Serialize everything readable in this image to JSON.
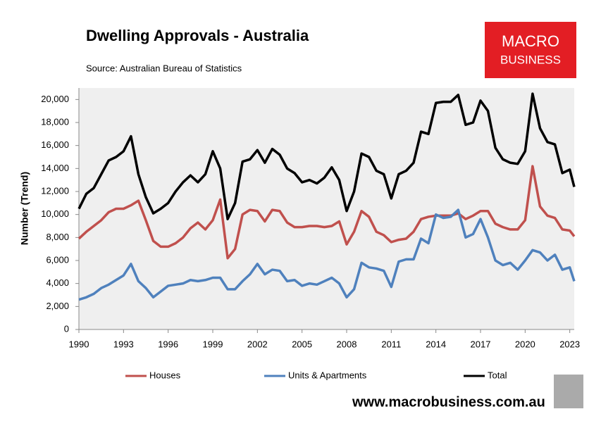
{
  "chart_data": {
    "type": "line",
    "title": "Dwelling Approvals - Australia",
    "subtitle": "Source: Australian Bureau of Statistics",
    "logo": [
      "MACRO",
      "BUSINESS"
    ],
    "footer": "www.macrobusiness.com.au",
    "y_label": "Number (Trend)",
    "x": [
      1990,
      1990.5,
      1991,
      1991.5,
      1992,
      1992.5,
      1993,
      1993.5,
      1994,
      1994.5,
      1995,
      1995.5,
      1996,
      1996.5,
      1997,
      1997.5,
      1998,
      1998.5,
      1999,
      1999.5,
      2000,
      2000.5,
      2001,
      2001.5,
      2002,
      2002.5,
      2003,
      2003.5,
      2004,
      2004.5,
      2005,
      2005.5,
      2006,
      2006.5,
      2007,
      2007.5,
      2008,
      2008.5,
      2009,
      2009.5,
      2010,
      2010.5,
      2011,
      2011.5,
      2012,
      2012.5,
      2013,
      2013.5,
      2014,
      2014.5,
      2015,
      2015.5,
      2016,
      2016.5,
      2017,
      2017.5,
      2018,
      2018.5,
      2019,
      2019.5,
      2020,
      2020.5,
      2021,
      2021.5,
      2022,
      2022.5,
      2023,
      2023.3
    ],
    "series": [
      {
        "name": "Houses",
        "color": "#c0504d",
        "values": [
          7900,
          8500,
          9000,
          9500,
          10200,
          10500,
          10500,
          10800,
          11200,
          9500,
          7700,
          7200,
          7200,
          7500,
          8000,
          8800,
          9300,
          8700,
          9500,
          11300,
          6200,
          7000,
          10000,
          10400,
          10300,
          9400,
          10400,
          10300,
          9300,
          8900,
          8900,
          9000,
          9000,
          8900,
          9000,
          9400,
          7400,
          8500,
          10300,
          9800,
          8500,
          8200,
          7600,
          7800,
          7900,
          8500,
          9600,
          9800,
          9900,
          9900,
          9900,
          10100,
          9600,
          9900,
          10300,
          10300,
          9200,
          8900,
          8700,
          8700,
          9500,
          14200,
          10700,
          9900,
          9700,
          8700,
          8600,
          8100
        ]
      },
      {
        "name": "Units & Apartments",
        "color": "#4f81bd",
        "values": [
          2600,
          2800,
          3100,
          3600,
          3900,
          4300,
          4700,
          5700,
          4200,
          3600,
          2800,
          3300,
          3800,
          3900,
          4000,
          4300,
          4200,
          4300,
          4500,
          4500,
          3500,
          3500,
          4200,
          4800,
          5700,
          4800,
          5200,
          5100,
          4200,
          4300,
          3800,
          4000,
          3900,
          4200,
          4500,
          4000,
          2800,
          3500,
          5800,
          5400,
          5300,
          5100,
          3700,
          5900,
          6100,
          6100,
          7900,
          7500,
          10000,
          9700,
          9800,
          10400,
          8000,
          8300,
          9600,
          8000,
          6000,
          5600,
          5800,
          5200,
          6000,
          6900,
          6700,
          6000,
          6500,
          5200,
          5400,
          4200
        ]
      },
      {
        "name": "Total",
        "color": "#000000",
        "values": [
          10500,
          11800,
          12300,
          13500,
          14700,
          15000,
          15500,
          16800,
          13500,
          11500,
          10100,
          10500,
          11000,
          12000,
          12800,
          13400,
          12800,
          13500,
          15500,
          14000,
          9600,
          11000,
          14600,
          14800,
          15600,
          14500,
          15700,
          15200,
          14000,
          13600,
          12800,
          13000,
          12700,
          13200,
          14100,
          13000,
          10300,
          12000,
          15300,
          15000,
          13800,
          13500,
          11400,
          13500,
          13800,
          14500,
          17200,
          17000,
          19700,
          19800,
          19800,
          20400,
          17800,
          18000,
          19900,
          19000,
          15800,
          14800,
          14500,
          14400,
          15500,
          20500,
          17500,
          16300,
          16100,
          13600,
          13900,
          12400
        ]
      }
    ],
    "xlim": [
      1990,
      2023.3
    ],
    "xticks": [
      1990,
      1993,
      1996,
      1999,
      2002,
      2005,
      2008,
      2011,
      2014,
      2017,
      2020,
      2023
    ],
    "ylim": [
      0,
      21000
    ],
    "yticks": [
      0,
      {
        "value": 2000,
        "label": "2,000"
      },
      {
        "value": 4000,
        "label": "4,000"
      },
      {
        "value": 6000,
        "label": "6,000"
      },
      {
        "value": 8000,
        "label": "8,000"
      },
      {
        "value": 10000,
        "label": "10,000"
      },
      {
        "value": 12000,
        "label": "12,000"
      },
      {
        "value": 14000,
        "label": "14,000"
      },
      {
        "value": 16000,
        "label": "16,000"
      },
      {
        "value": 18000,
        "label": "18,000"
      },
      {
        "value": 20000,
        "label": "20,000"
      }
    ],
    "grid": false,
    "legend": "bottom"
  }
}
